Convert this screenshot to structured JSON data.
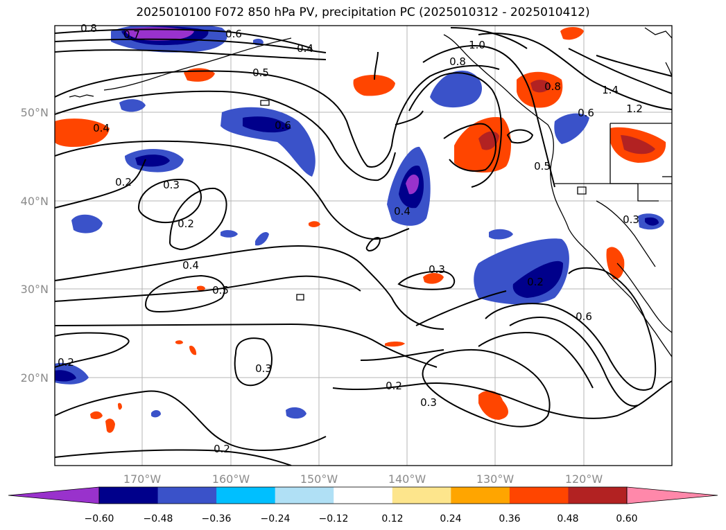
{
  "title": "2025010100 F072 850 hPa PV, precipitation PC (2025010312 - 2025010412)",
  "axes": {
    "lat_labels": [
      "50°N",
      "40°N",
      "30°N",
      "20°N"
    ],
    "lon_labels": [
      "170°W",
      "160°W",
      "150°W",
      "140°W",
      "130°W",
      "120°W"
    ]
  },
  "contour_labels": [
    "0.8",
    "0.7",
    "0.6",
    "0.4",
    "0.5",
    "1.0",
    "0.8",
    "1.4",
    "1.2",
    "0.8",
    "0.6",
    "0.4",
    "0.6",
    "0.2",
    "0.3",
    "0.2",
    "0.4",
    "0.5",
    "0.3",
    "0.4",
    "0.5",
    "0.3",
    "0.2",
    "0.6",
    "0.2",
    "0.3",
    "0.2",
    "0.3",
    "0.2"
  ],
  "colorbar": {
    "colors": [
      "#9932cc",
      "#00008b",
      "#3a52c9",
      "#00bfff",
      "#b0e0f5",
      "#ffffff",
      "#fde58c",
      "#ffa500",
      "#ff4500",
      "#b22222",
      "#ff88aa"
    ],
    "ticks": [
      "−0.60",
      "−0.48",
      "−0.36",
      "−0.24",
      "−0.12",
      "0.12",
      "0.24",
      "0.36",
      "0.48",
      "0.60"
    ]
  }
}
